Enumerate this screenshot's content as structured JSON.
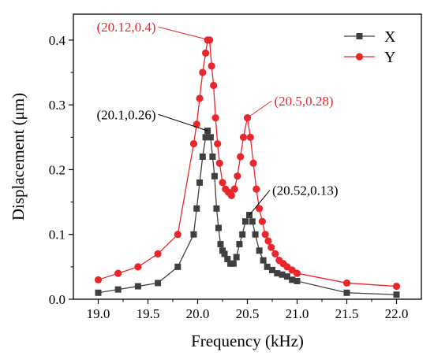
{
  "chart_data": {
    "type": "line",
    "title": "",
    "xlabel": "Frequency (kHz)",
    "ylabel": "Displacement (μm)",
    "xlim": [
      18.75,
      22.25
    ],
    "ylim": [
      0,
      0.44
    ],
    "xticks": [
      "19.0",
      "19.5",
      "20.0",
      "20.5",
      "21.0",
      "21.5",
      "22.0"
    ],
    "yticks": [
      "0.0",
      "0.1",
      "0.2",
      "0.3",
      "0.4"
    ],
    "grid": false,
    "legend_position": "top-right",
    "series": [
      {
        "name": "X",
        "color": "#3f3f3f",
        "marker": "square",
        "x": [
          19.0,
          19.2,
          19.4,
          19.6,
          19.8,
          19.96,
          19.99,
          20.02,
          20.05,
          20.08,
          20.1,
          20.13,
          20.15,
          20.17,
          20.19,
          20.21,
          20.23,
          20.25,
          20.27,
          20.3,
          20.33,
          20.36,
          20.39,
          20.42,
          20.45,
          20.48,
          20.52,
          20.55,
          20.58,
          20.62,
          20.66,
          20.7,
          20.75,
          20.8,
          20.85,
          20.9,
          20.95,
          21.0,
          21.5,
          22.0
        ],
        "y": [
          0.01,
          0.015,
          0.02,
          0.025,
          0.05,
          0.1,
          0.14,
          0.18,
          0.22,
          0.25,
          0.26,
          0.25,
          0.22,
          0.19,
          0.14,
          0.11,
          0.085,
          0.075,
          0.07,
          0.062,
          0.055,
          0.055,
          0.065,
          0.085,
          0.1,
          0.12,
          0.13,
          0.12,
          0.1,
          0.075,
          0.06,
          0.05,
          0.045,
          0.04,
          0.038,
          0.035,
          0.03,
          0.028,
          0.01,
          0.007
        ]
      },
      {
        "name": "Y",
        "color": "#e8262b",
        "marker": "circle",
        "x": [
          19.0,
          19.2,
          19.4,
          19.6,
          19.8,
          19.96,
          19.99,
          20.02,
          20.05,
          20.08,
          20.1,
          20.12,
          20.14,
          20.16,
          20.18,
          20.2,
          20.22,
          20.25,
          20.28,
          20.31,
          20.34,
          20.37,
          20.4,
          20.43,
          20.46,
          20.5,
          20.53,
          20.56,
          20.59,
          20.62,
          20.65,
          20.68,
          20.71,
          20.74,
          20.78,
          20.82,
          20.86,
          20.9,
          20.95,
          21.0,
          21.5,
          22.0
        ],
        "y": [
          0.03,
          0.04,
          0.05,
          0.07,
          0.1,
          0.24,
          0.27,
          0.31,
          0.35,
          0.38,
          0.4,
          0.4,
          0.36,
          0.33,
          0.28,
          0.24,
          0.21,
          0.18,
          0.17,
          0.165,
          0.16,
          0.17,
          0.19,
          0.22,
          0.25,
          0.28,
          0.25,
          0.21,
          0.17,
          0.14,
          0.12,
          0.1,
          0.09,
          0.08,
          0.07,
          0.06,
          0.055,
          0.05,
          0.045,
          0.04,
          0.025,
          0.02
        ]
      }
    ],
    "annotations": [
      {
        "text": "(20.12,0.4)",
        "color": "#e8262b",
        "x": 20.12,
        "y": 0.4,
        "label_x": 19.58,
        "label_y": 0.413,
        "anchor": "end"
      },
      {
        "text": "(20.5,0.28)",
        "color": "#e8262b",
        "x": 20.5,
        "y": 0.28,
        "label_x": 20.77,
        "label_y": 0.299,
        "anchor": "start"
      },
      {
        "text": "(20.1,0.26)",
        "color": "#000000",
        "x": 20.1,
        "y": 0.26,
        "label_x": 19.58,
        "label_y": 0.278,
        "anchor": "end"
      },
      {
        "text": "(20.52,0.13)",
        "color": "#000000",
        "x": 20.52,
        "y": 0.13,
        "label_x": 20.75,
        "label_y": 0.161,
        "anchor": "start"
      }
    ]
  }
}
